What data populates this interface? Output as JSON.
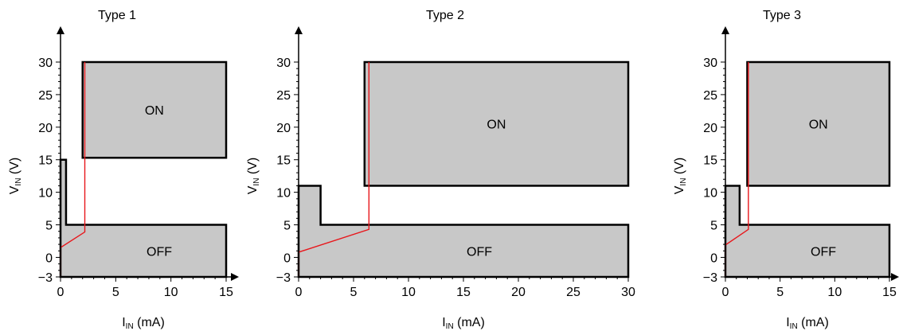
{
  "colors": {
    "region_fill": "#c8c8c8",
    "region_stroke": "#000000",
    "curve": "#e8161b",
    "axis": "#000000",
    "background": "#ffffff"
  },
  "chart_data": [
    {
      "type": "area",
      "title": "Type 1",
      "xlabel": {
        "base": "I",
        "sub": "IN",
        "rest": " (mA)"
      },
      "ylabel": {
        "base": "V",
        "sub": "IN",
        "rest": " (V)"
      },
      "xlim": [
        0,
        15
      ],
      "ylim": [
        -3,
        30
      ],
      "x_ticks": [
        0,
        5,
        10,
        15
      ],
      "y_ticks": [
        -3,
        0,
        5,
        10,
        15,
        20,
        25,
        30
      ],
      "x_tick_labels": [
        "0",
        "5",
        "10",
        "15"
      ],
      "y_tick_labels": [
        "−3",
        "0",
        "5",
        "10",
        "15",
        "20",
        "25",
        "30"
      ],
      "on_region": {
        "label": "ON",
        "x": [
          2.0,
          15
        ],
        "y": [
          15.3,
          30
        ]
      },
      "off_region": {
        "label": "OFF",
        "outline": [
          [
            0,
            -3
          ],
          [
            0,
            15
          ],
          [
            0.5,
            15
          ],
          [
            0.5,
            5
          ],
          [
            15,
            5
          ],
          [
            15,
            -3
          ]
        ]
      },
      "curve": [
        [
          0,
          -3
        ],
        [
          0,
          1.5
        ],
        [
          2.2,
          3.9
        ],
        [
          2.2,
          30
        ]
      ]
    },
    {
      "type": "area",
      "title": "Type 2",
      "xlabel": {
        "base": "I",
        "sub": "IN",
        "rest": " (mA)"
      },
      "ylabel": {
        "base": "V",
        "sub": "IN",
        "rest": " (V)"
      },
      "xlim": [
        0,
        30
      ],
      "ylim": [
        -3,
        30
      ],
      "x_ticks": [
        0,
        5,
        10,
        15,
        20,
        25,
        30
      ],
      "y_ticks": [
        -3,
        0,
        5,
        10,
        15,
        20,
        25,
        30
      ],
      "x_tick_labels": [
        "0",
        "5",
        "10",
        "15",
        "20",
        "25",
        "30"
      ],
      "y_tick_labels": [
        "−3",
        "0",
        "5",
        "10",
        "15",
        "20",
        "25",
        "30"
      ],
      "on_region": {
        "label": "ON",
        "x": [
          6.0,
          30
        ],
        "y": [
          11,
          30
        ]
      },
      "off_region": {
        "label": "OFF",
        "outline": [
          [
            0,
            -3
          ],
          [
            0,
            11
          ],
          [
            2.0,
            11
          ],
          [
            2.0,
            5
          ],
          [
            30,
            5
          ],
          [
            30,
            -3
          ]
        ]
      },
      "curve": [
        [
          0,
          -3
        ],
        [
          0,
          0.8
        ],
        [
          6.4,
          4.3
        ],
        [
          6.4,
          30
        ]
      ]
    },
    {
      "type": "area",
      "title": "Type 3",
      "xlabel": {
        "base": "I",
        "sub": "IN",
        "rest": " (mA)"
      },
      "ylabel": {
        "base": "V",
        "sub": "IN",
        "rest": " (V)"
      },
      "xlim": [
        0,
        15
      ],
      "ylim": [
        -3,
        30
      ],
      "x_ticks": [
        0,
        5,
        10,
        15
      ],
      "y_ticks": [
        -3,
        0,
        5,
        10,
        15,
        20,
        25,
        30
      ],
      "x_tick_labels": [
        "0",
        "5",
        "10",
        "15"
      ],
      "y_tick_labels": [
        "−3",
        "0",
        "5",
        "10",
        "15",
        "20",
        "25",
        "30"
      ],
      "on_region": {
        "label": "ON",
        "x": [
          2.0,
          15
        ],
        "y": [
          11,
          30
        ]
      },
      "off_region": {
        "label": "OFF",
        "outline": [
          [
            0,
            -3
          ],
          [
            0,
            11
          ],
          [
            1.3,
            11
          ],
          [
            1.3,
            5
          ],
          [
            15,
            5
          ],
          [
            15,
            -3
          ]
        ]
      },
      "curve": [
        [
          0,
          -3
        ],
        [
          0,
          1.9
        ],
        [
          2.1,
          4.3
        ],
        [
          2.1,
          30
        ]
      ]
    }
  ]
}
